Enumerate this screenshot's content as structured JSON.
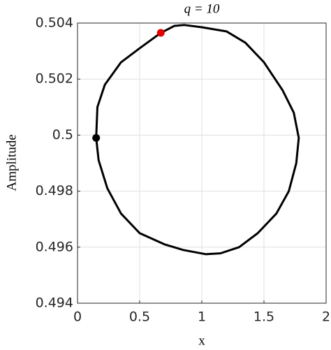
{
  "chart_data": {
    "type": "line",
    "title": "q = 10",
    "xlabel": "x",
    "ylabel": "Amplitude",
    "xlim": [
      0,
      2
    ],
    "xticks": [
      0,
      0.5,
      1,
      1.5,
      2
    ],
    "ylim": [
      0.494,
      0.504
    ],
    "yticks": [
      0.494,
      0.496,
      0.498,
      0.5,
      0.502,
      0.504
    ],
    "grid": true,
    "series": [
      {
        "color": "#000000",
        "marker": false,
        "x": [
          0.15,
          0.16,
          0.22,
          0.35,
          0.5,
          0.67,
          0.78,
          0.86,
          1.0,
          1.2,
          1.35,
          1.5,
          1.65,
          1.74,
          1.78,
          1.76,
          1.7,
          1.6,
          1.45,
          1.3,
          1.15,
          1.03,
          0.85,
          0.7,
          0.5,
          0.35,
          0.24,
          0.17,
          0.15
        ],
        "values": [
          0.4999,
          0.501,
          0.5018,
          0.5026,
          0.5031,
          0.50365,
          0.5039,
          0.50393,
          0.50385,
          0.5037,
          0.5033,
          0.5026,
          0.5016,
          0.5008,
          0.4999,
          0.499,
          0.498,
          0.4972,
          0.4965,
          0.496,
          0.49578,
          0.49575,
          0.4959,
          0.4961,
          0.4965,
          0.4972,
          0.4981,
          0.4991,
          0.4999
        ]
      },
      {
        "color": "#e00000",
        "marker": true,
        "x": [
          0.67
        ],
        "values": [
          0.50365
        ]
      },
      {
        "color": "#000000",
        "marker": true,
        "x": [
          0.15
        ],
        "values": [
          0.4999
        ]
      }
    ]
  }
}
